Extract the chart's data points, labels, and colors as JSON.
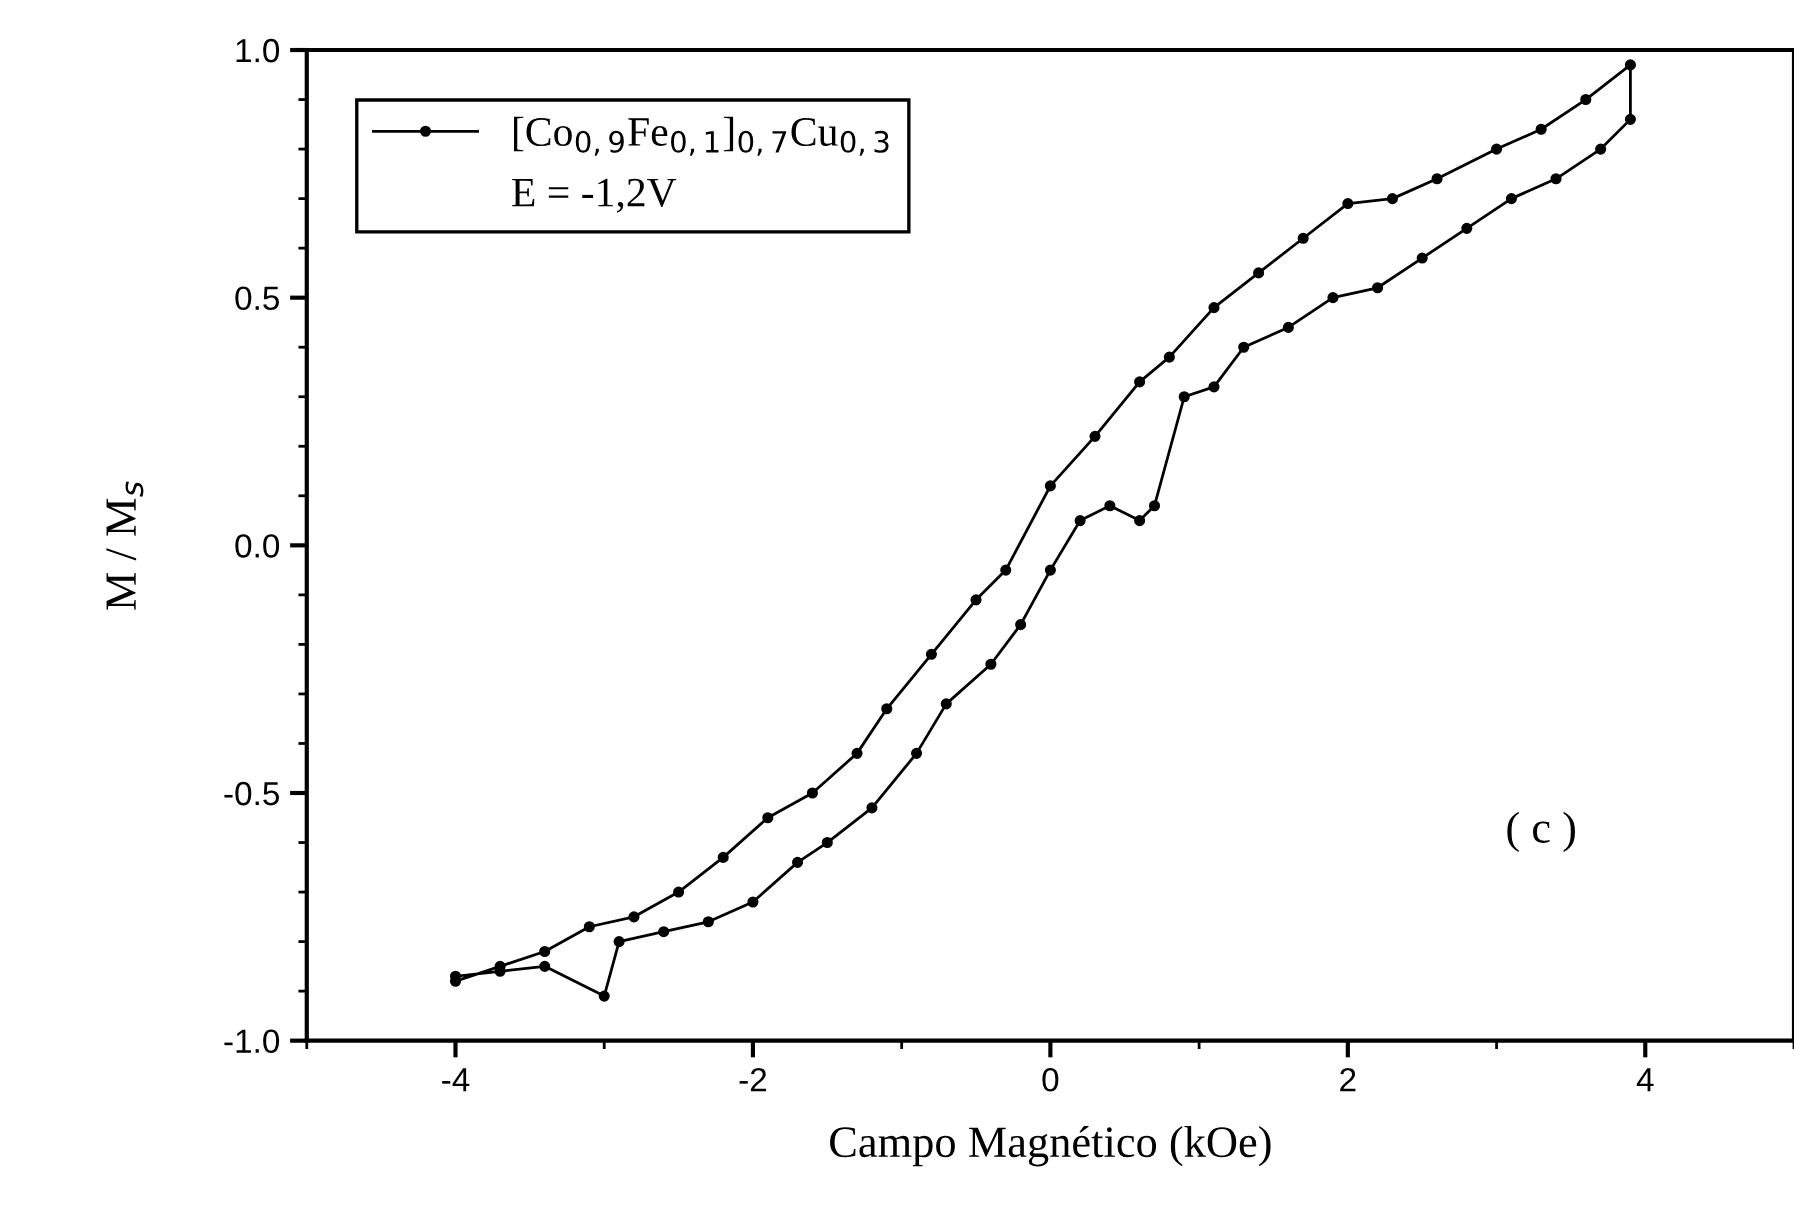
{
  "chart_data": {
    "type": "line",
    "xlabel": "Campo Magnético (kOe)",
    "ylabel": "M / M$_{s}$",
    "xlim": [
      -5,
      5
    ],
    "ylim": [
      -1,
      1
    ],
    "xticks": [
      -4,
      -2,
      0,
      2,
      4,
      {
        "value": -5,
        "label": null
      },
      {
        "value": -3,
        "label": null
      },
      {
        "value": -1,
        "label": null
      },
      {
        "value": 1,
        "label": null
      },
      {
        "value": 3,
        "label": null
      },
      {
        "value": 5,
        "label": null
      }
    ],
    "yticks": [
      {
        "value": -1,
        "label": "-1.0"
      },
      {
        "value": -0.5,
        "label": "-0.5"
      },
      {
        "value": 0,
        "label": "0.0"
      },
      {
        "value": 0.5,
        "label": "0.5"
      },
      {
        "value": 1,
        "label": "1.0"
      },
      {
        "value": -0.9,
        "label": null
      },
      {
        "value": -0.8,
        "label": null
      },
      {
        "value": -0.7,
        "label": null
      },
      {
        "value": -0.6,
        "label": null
      },
      {
        "value": -0.4,
        "label": null
      },
      {
        "value": -0.3,
        "label": null
      },
      {
        "value": -0.2,
        "label": null
      },
      {
        "value": -0.1,
        "label": null
      },
      {
        "value": 0.1,
        "label": null
      },
      {
        "value": 0.2,
        "label": null
      },
      {
        "value": 0.3,
        "label": null
      },
      {
        "value": 0.4,
        "label": null
      },
      {
        "value": 0.6,
        "label": null
      },
      {
        "value": 0.7,
        "label": null
      },
      {
        "value": 0.8,
        "label": null
      },
      {
        "value": 0.9,
        "label": null
      }
    ],
    "grid": false,
    "legend": "top left",
    "marker": "circle",
    "line_style": "solid",
    "annotations": [
      "E = -1,2V",
      "( c )"
    ],
    "series": [
      {
        "name": "[Co$_{0,9}$Fe$_{0,1}$]$_{0,7}$Cu$_{0,3}$",
        "color": "#000000",
        "x": [
          -4,
          -3.7,
          -3.4,
          -3.0,
          -2.9,
          -2.6,
          -2.3,
          -2.0,
          -1.7,
          -1.5,
          -1.2,
          -0.9,
          -0.7,
          -0.4,
          -0.2,
          0,
          0.2,
          0.4,
          0.6,
          0.7,
          0.9,
          1.1,
          1.3,
          1.6,
          1.9,
          2.2,
          2.5,
          2.8,
          3.1,
          3.4,
          3.7,
          3.9,
          3.9,
          3.6,
          3.3,
          3.0,
          2.6,
          2.3,
          2.0,
          1.7,
          1.4,
          1.1,
          0.8,
          0.6,
          0.3,
          0,
          -0.3,
          -0.5,
          -0.8,
          -1.1,
          -1.3,
          -1.6,
          -1.9,
          -2.2,
          -2.5,
          -2.8,
          -3.1,
          -3.4,
          -3.7,
          -4.0
        ],
        "values": [
          -0.87,
          -0.86,
          -0.85,
          -0.91,
          -0.8,
          -0.78,
          -0.76,
          -0.72,
          -0.64,
          -0.6,
          -0.53,
          -0.42,
          -0.32,
          -0.24,
          -0.16,
          -0.05,
          0.05,
          0.08,
          0.05,
          0.08,
          0.3,
          0.32,
          0.4,
          0.44,
          0.5,
          0.52,
          0.58,
          0.64,
          0.7,
          0.74,
          0.8,
          0.86,
          0.97,
          0.9,
          0.84,
          0.8,
          0.74,
          0.7,
          0.69,
          0.62,
          0.55,
          0.48,
          0.38,
          0.33,
          0.22,
          0.12,
          -0.05,
          -0.11,
          -0.22,
          -0.33,
          -0.42,
          -0.5,
          -0.55,
          -0.63,
          -0.7,
          -0.75,
          -0.77,
          -0.82,
          -0.85,
          -0.88
        ]
      }
    ]
  }
}
